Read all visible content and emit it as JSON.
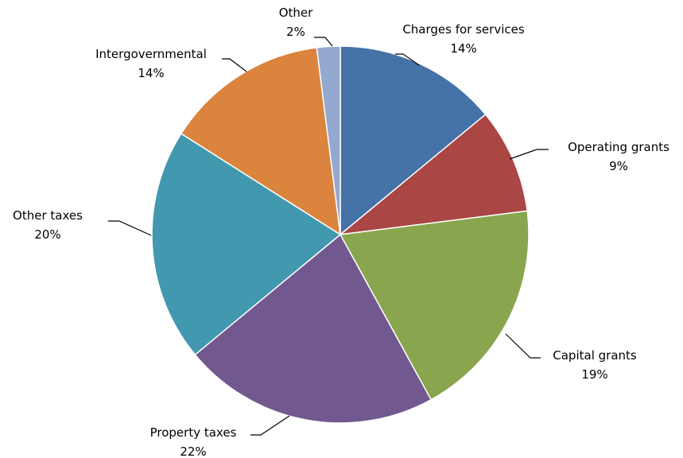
{
  "chart_data": {
    "type": "pie",
    "title": "",
    "start_angle_deg": 0,
    "direction": "clockwise",
    "slices": [
      {
        "label": "Charges for services",
        "value": 14,
        "pct_label": "14%",
        "color": "#4572A7"
      },
      {
        "label": "Operating grants",
        "value": 9,
        "pct_label": "9%",
        "color": "#AA4643"
      },
      {
        "label": "Capital grants",
        "value": 19,
        "pct_label": "19%",
        "color": "#89A54E"
      },
      {
        "label": "Property taxes",
        "value": 22,
        "pct_label": "22%",
        "color": "#71588F"
      },
      {
        "label": "Other taxes",
        "value": 20,
        "pct_label": "20%",
        "color": "#4198AF"
      },
      {
        "label": "Intergovernmental",
        "value": 14,
        "pct_label": "14%",
        "color": "#DB843D"
      },
      {
        "label": "Other",
        "value": 2,
        "pct_label": "2%",
        "color": "#93A9CF"
      }
    ]
  }
}
